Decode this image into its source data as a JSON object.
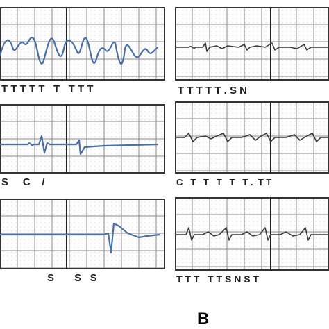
{
  "colors": {
    "grid": "#8a8a8a",
    "trace_left": "#4a6fa5",
    "trace_right": "#3a3a3a",
    "text": "#222222"
  },
  "left_column": [
    {
      "annotation": "T T T T T   T   T T T"
    },
    {
      "annotation": "S     C    /"
    },
    {
      "annotation": "S       S   S"
    }
  ],
  "right_column": [
    {
      "annotation": "T T T T T . S N"
    },
    {
      "annotation": "C   T   T   T   T   T .  T T"
    },
    {
      "annotation": "T T T   T T S N S T"
    }
  ],
  "panel_label": "B"
}
